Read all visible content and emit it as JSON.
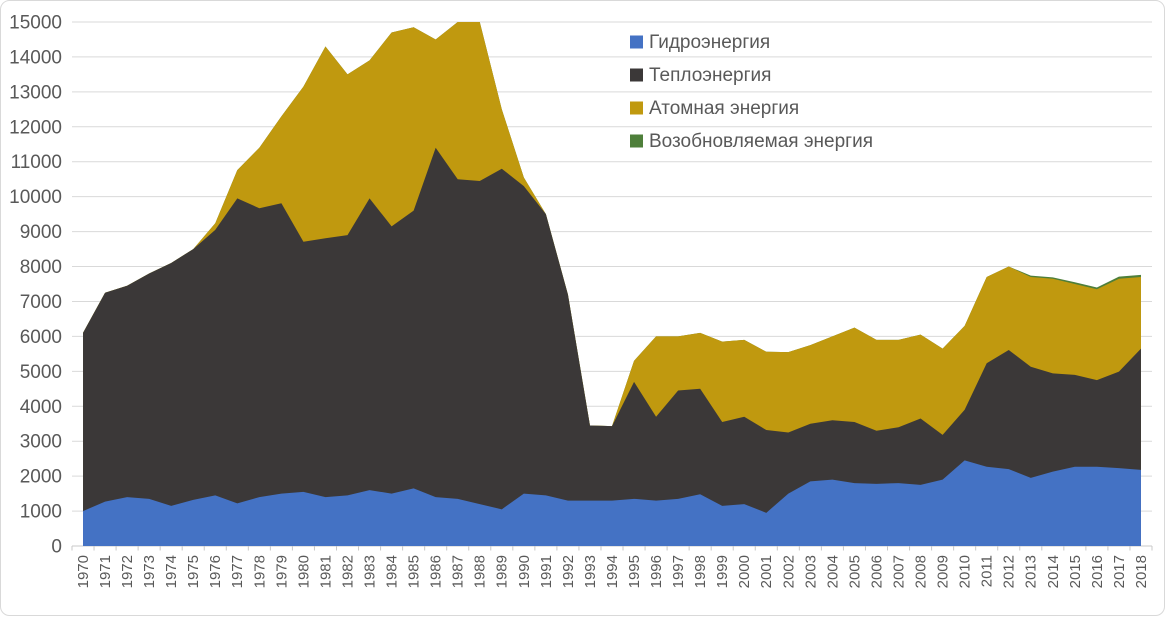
{
  "chart_data": {
    "type": "area",
    "stacked": true,
    "title": "",
    "x_categories": [
      1970,
      1971,
      1972,
      1973,
      1974,
      1975,
      1976,
      1977,
      1978,
      1979,
      1980,
      1981,
      1982,
      1983,
      1984,
      1985,
      1986,
      1987,
      1988,
      1989,
      1990,
      1991,
      1992,
      1993,
      1994,
      1995,
      1996,
      1997,
      1998,
      1999,
      2000,
      2001,
      2002,
      2003,
      2004,
      2005,
      2006,
      2007,
      2008,
      2009,
      2010,
      2011,
      2012,
      2013,
      2014,
      2015,
      2016,
      2017,
      2018
    ],
    "series": [
      {
        "name": "Гидроэнергия",
        "color": "#4472C4",
        "values": [
          1000,
          1270,
          1400,
          1350,
          1150,
          1320,
          1450,
          1220,
          1400,
          1500,
          1550,
          1400,
          1450,
          1600,
          1500,
          1650,
          1400,
          1350,
          1200,
          1050,
          1500,
          1450,
          1300,
          1300,
          1300,
          1350,
          1300,
          1350,
          1480,
          1150,
          1200,
          950,
          1500,
          1850,
          1900,
          1800,
          1780,
          1800,
          1750,
          1900,
          2450,
          2270,
          2200,
          1950,
          2130,
          2270,
          2270,
          2230,
          2180
        ]
      },
      {
        "name": "Теплоэнергия",
        "color": "#3B3838",
        "values": [
          5100,
          5980,
          6050,
          6450,
          6950,
          7180,
          7600,
          8730,
          8270,
          8310,
          7160,
          7410,
          7450,
          8350,
          7650,
          7950,
          10000,
          9150,
          9250,
          9750,
          8800,
          8050,
          5900,
          2150,
          2130,
          3350,
          2400,
          3100,
          3020,
          2400,
          2500,
          2370,
          1750,
          1650,
          1700,
          1750,
          1520,
          1600,
          1900,
          1280,
          1450,
          2960,
          3410,
          3180,
          2810,
          2630,
          2480,
          2760,
          3470
        ]
      },
      {
        "name": "Атомная энергия",
        "color": "#C0990F",
        "values": [
          0,
          0,
          0,
          0,
          0,
          0,
          190,
          810,
          1730,
          2490,
          4440,
          5490,
          4600,
          3950,
          5550,
          5250,
          3100,
          4500,
          4550,
          1700,
          250,
          0,
          0,
          0,
          0,
          600,
          2300,
          1550,
          1600,
          2300,
          2200,
          2240,
          2300,
          2250,
          2400,
          2700,
          2600,
          2500,
          2400,
          2470,
          2400,
          2470,
          2390,
          2570,
          2710,
          2600,
          2600,
          2660,
          2050
        ]
      },
      {
        "name": "Возобновляемая энергия",
        "color": "#4E7F3A",
        "values": [
          0,
          0,
          0,
          0,
          0,
          0,
          0,
          0,
          0,
          0,
          0,
          0,
          0,
          0,
          0,
          0,
          0,
          0,
          0,
          0,
          0,
          0,
          0,
          0,
          0,
          0,
          0,
          0,
          0,
          0,
          0,
          0,
          0,
          0,
          0,
          0,
          0,
          0,
          0,
          0,
          0,
          0,
          0,
          40,
          40,
          50,
          50,
          60,
          60
        ]
      }
    ],
    "ylim": [
      0,
      15000
    ],
    "y_tick_step": 1000,
    "grid": true,
    "legend_position": "top-right-inside",
    "xlabel": "",
    "ylabel": ""
  },
  "style": {
    "background": "#FFFFFF",
    "grid_color": "#D9D9D9",
    "axis_line_color": "#C8C8C8",
    "tick_color": "#C8C8C8",
    "label_color": "#595959",
    "border_color": "#D9D9D9"
  }
}
